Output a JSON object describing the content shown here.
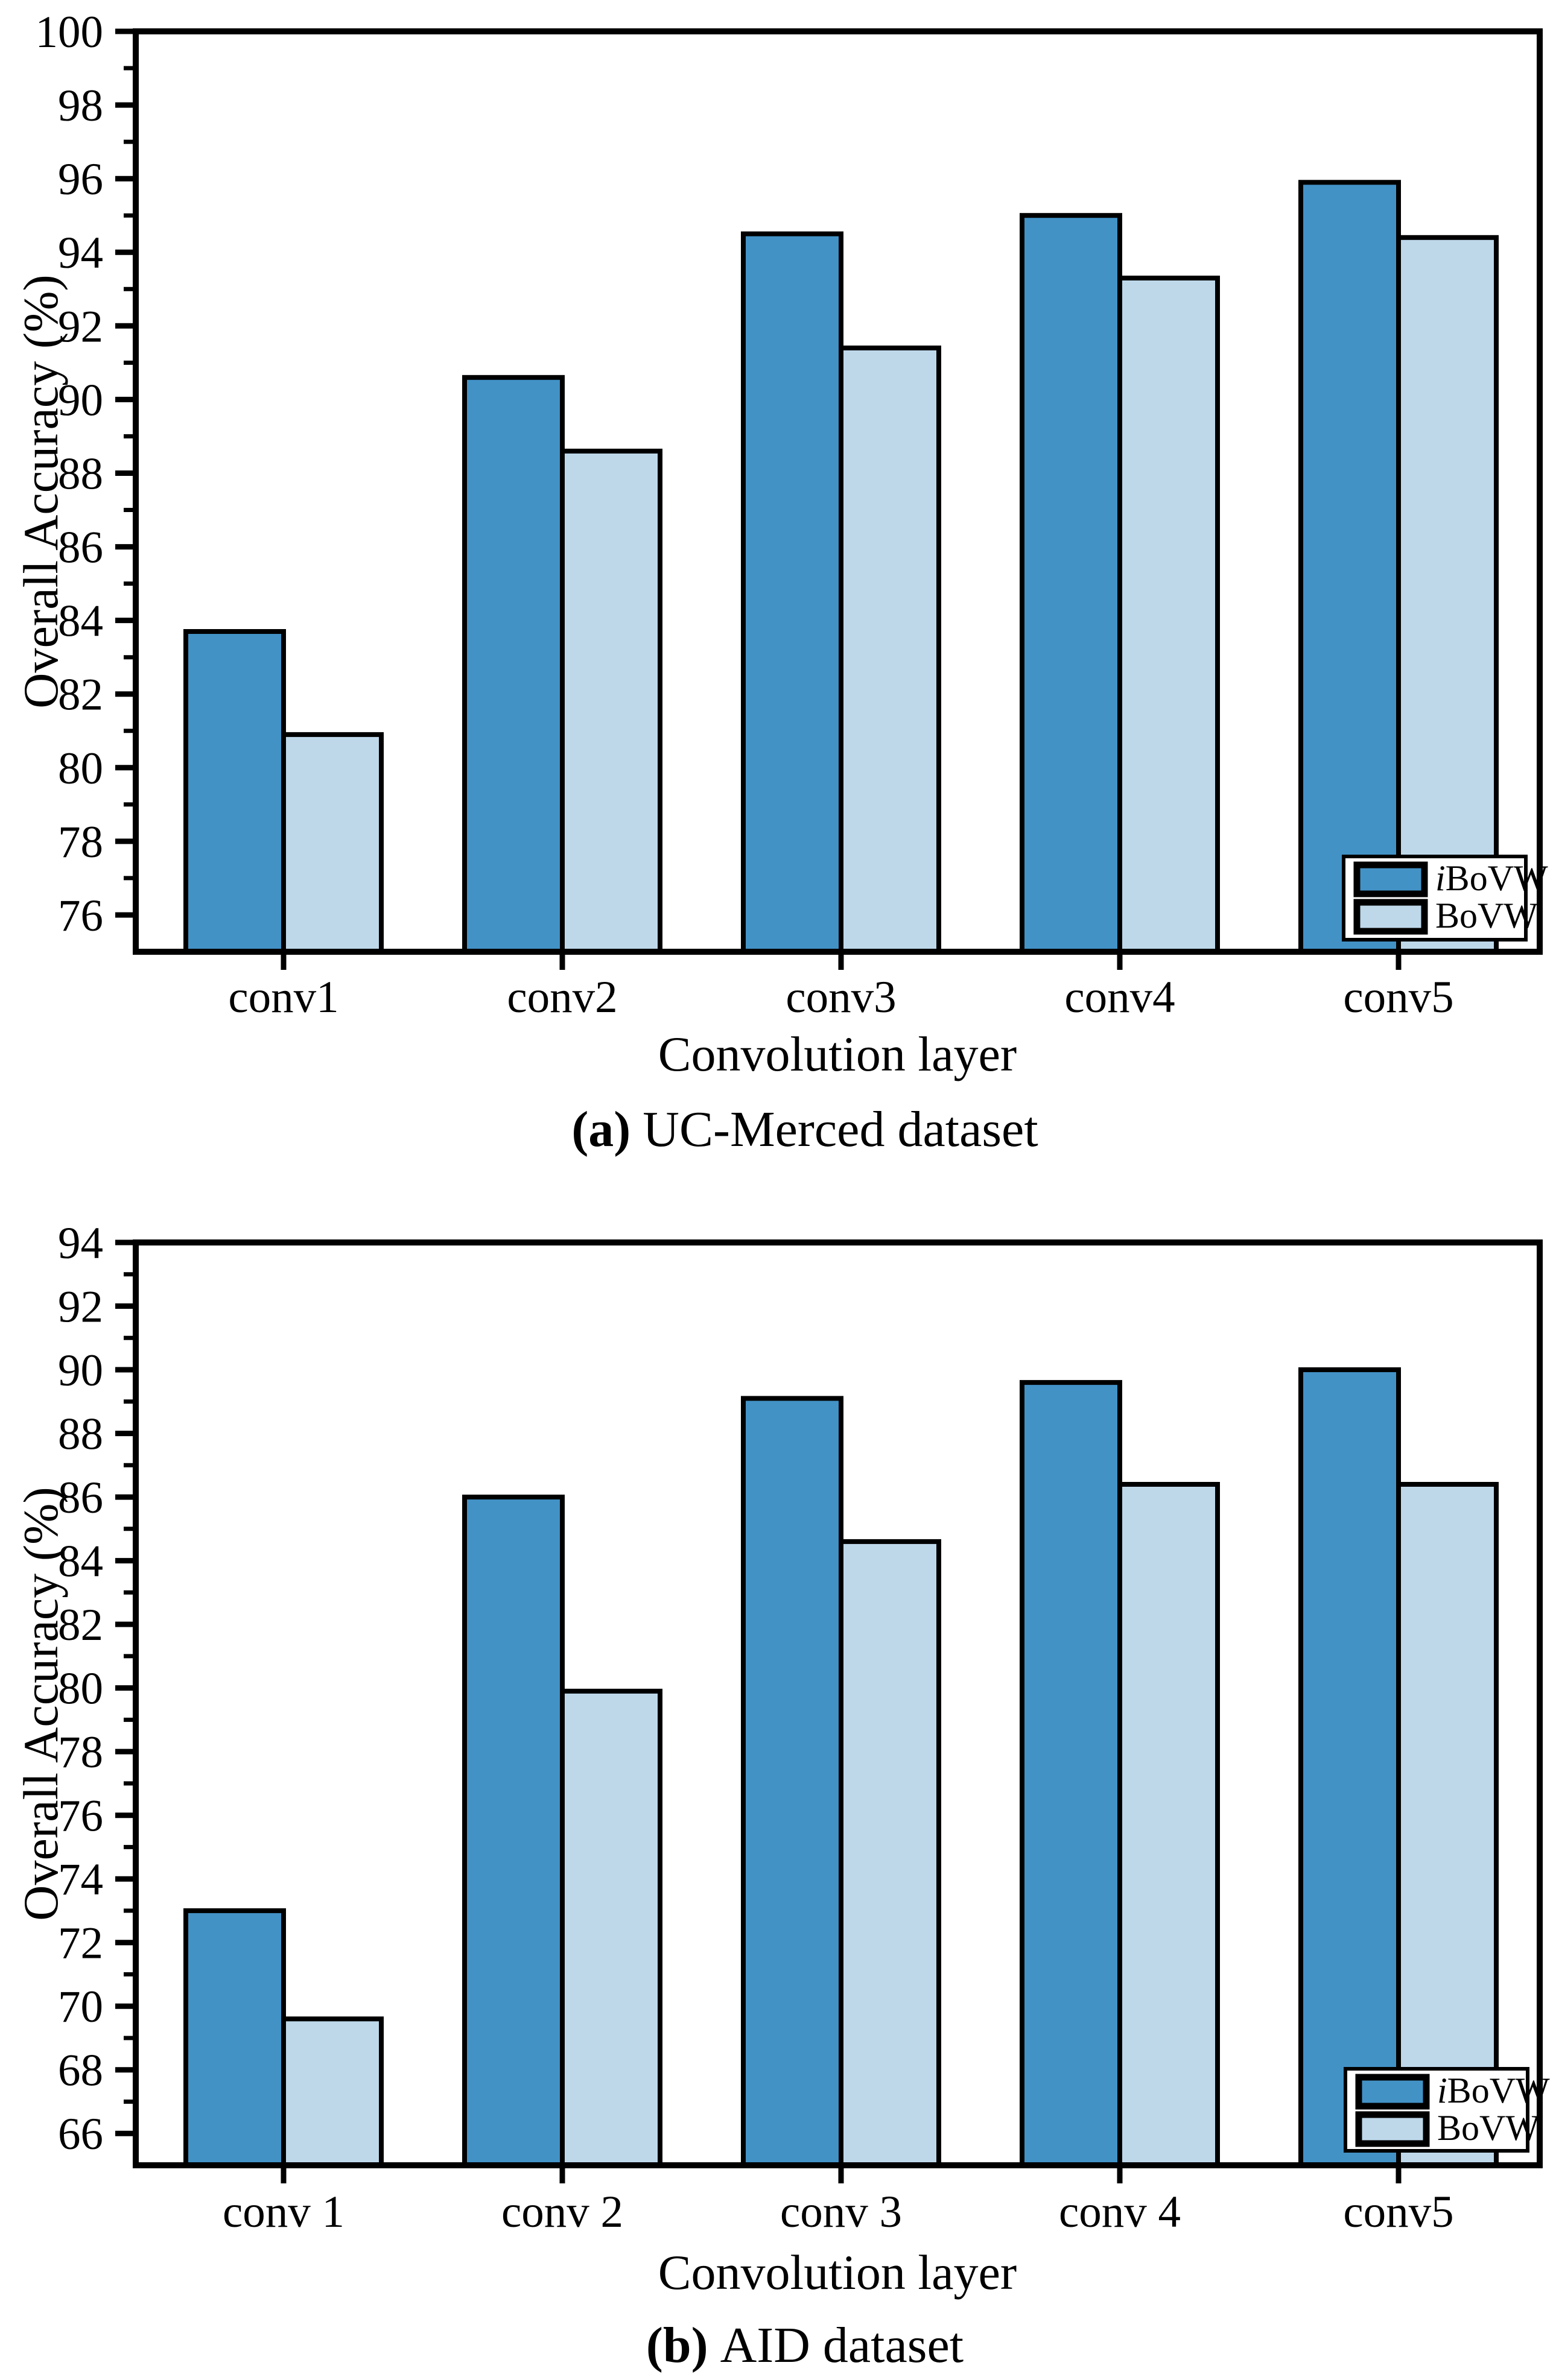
{
  "figure": {
    "captions": [
      {
        "marker": "(a)",
        "text": "UC-Merced dataset"
      },
      {
        "marker": "(b)",
        "text": "AID dataset"
      }
    ]
  },
  "colors": {
    "ibovw_fill": "#4292C6",
    "bovw_fill": "#BED8EA",
    "axis_stroke": "#000000",
    "legend_bg": "#FFFFFF"
  },
  "chart_data": [
    {
      "type": "bar",
      "panel": "a",
      "title": "UC-Merced dataset",
      "xlabel": "Convolution layer",
      "ylabel": "Overall Accuracy (%)",
      "categories": [
        "conv1",
        "conv2",
        "conv3",
        "conv4",
        "conv5"
      ],
      "series": [
        {
          "name": "iBoVW",
          "color": "#4292C6",
          "legend": {
            "prefix": "i",
            "text": "BoVW"
          },
          "values": [
            83.7,
            90.6,
            94.5,
            95.0,
            95.9
          ]
        },
        {
          "name": "BoVW",
          "color": "#BED8EA",
          "legend": {
            "prefix": "",
            "text": "BoVW"
          },
          "values": [
            80.9,
            88.6,
            91.4,
            93.3,
            94.4
          ]
        }
      ],
      "ylim": [
        75,
        100
      ],
      "yticks": [
        76,
        78,
        80,
        82,
        84,
        86,
        88,
        90,
        92,
        94,
        96,
        98,
        100
      ],
      "grid": false,
      "legend_position": "lower right"
    },
    {
      "type": "bar",
      "panel": "b",
      "title": "AID dataset",
      "xlabel": "Convolution layer",
      "ylabel": "Overall Accuracy (%)",
      "categories": [
        "conv 1",
        "conv 2",
        "conv 3",
        "conv 4",
        "conv5"
      ],
      "series": [
        {
          "name": "iBoVW",
          "color": "#4292C6",
          "legend": {
            "prefix": "i",
            "text": "BoVW"
          },
          "values": [
            73.0,
            86.0,
            89.1,
            89.6,
            90.0
          ]
        },
        {
          "name": "BoVW",
          "color": "#BED8EA",
          "legend": {
            "prefix": "",
            "text": "BoVW"
          },
          "values": [
            69.6,
            79.9,
            84.6,
            86.4,
            86.4
          ]
        }
      ],
      "ylim": [
        65,
        94
      ],
      "yticks": [
        66,
        68,
        70,
        72,
        74,
        76,
        78,
        80,
        82,
        84,
        86,
        88,
        90,
        92,
        94
      ],
      "grid": false,
      "legend_position": "lower right"
    }
  ]
}
